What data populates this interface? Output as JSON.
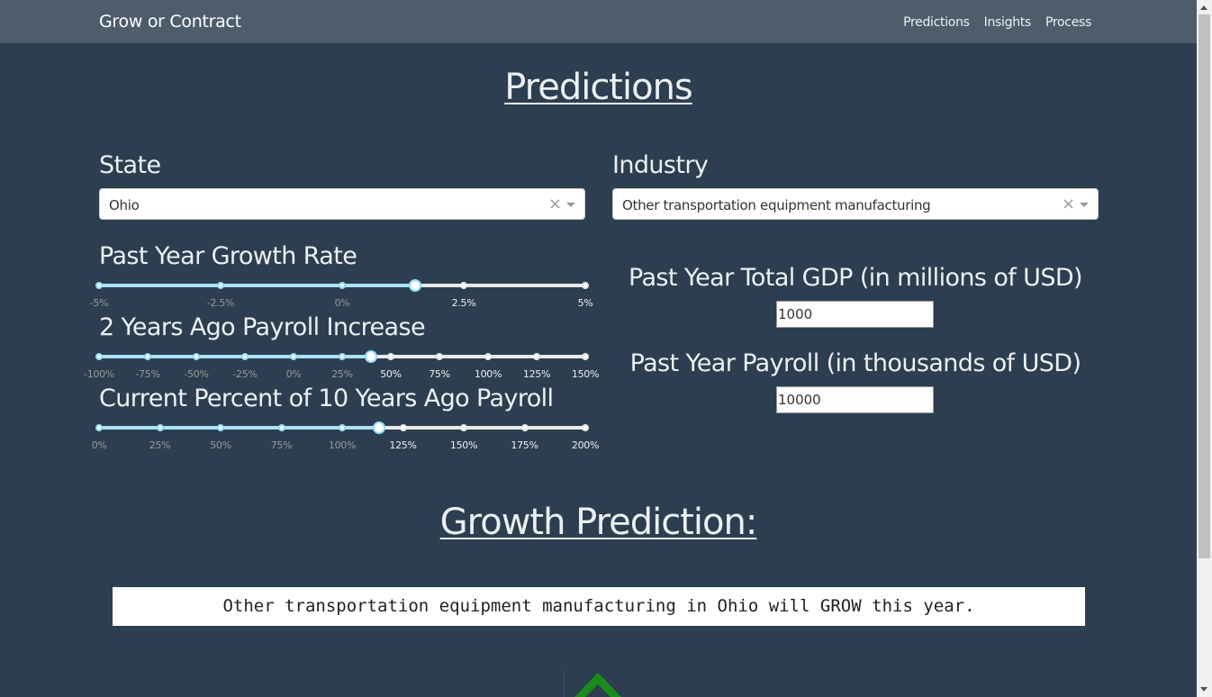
{
  "app": {
    "brand": "Grow or Contract"
  },
  "nav": {
    "links": [
      "Predictions",
      "Insights",
      "Process"
    ]
  },
  "page": {
    "title": "Predictions"
  },
  "state": {
    "label": "State",
    "value": "Ohio",
    "clear": "×"
  },
  "industry": {
    "label": "Industry",
    "value": "Other transportation equipment manufacturing",
    "clear": "×"
  },
  "sliders": [
    {
      "label": "Past Year Growth Rate",
      "min": -5,
      "max": 5,
      "value": 1.5,
      "marks": [
        {
          "v": -5,
          "t": "-5%"
        },
        {
          "v": -2.5,
          "t": "-2.5%"
        },
        {
          "v": 0,
          "t": "0%"
        },
        {
          "v": 2.5,
          "t": "2.5%"
        },
        {
          "v": 5,
          "t": "5%"
        }
      ]
    },
    {
      "label": "2 Years Ago Payroll Increase",
      "min": -100,
      "max": 150,
      "value": 40,
      "marks": [
        {
          "v": -100,
          "t": "-100%"
        },
        {
          "v": -75,
          "t": "-75%"
        },
        {
          "v": -50,
          "t": "-50%"
        },
        {
          "v": -25,
          "t": "-25%"
        },
        {
          "v": 0,
          "t": "0%"
        },
        {
          "v": 25,
          "t": "25%"
        },
        {
          "v": 50,
          "t": "50%"
        },
        {
          "v": 75,
          "t": "75%"
        },
        {
          "v": 100,
          "t": "100%"
        },
        {
          "v": 125,
          "t": "125%"
        },
        {
          "v": 150,
          "t": "150%"
        }
      ]
    },
    {
      "label": "Current Percent of 10 Years Ago Payroll",
      "min": 0,
      "max": 200,
      "value": 115,
      "marks": [
        {
          "v": 0,
          "t": "0%"
        },
        {
          "v": 25,
          "t": "25%"
        },
        {
          "v": 50,
          "t": "50%"
        },
        {
          "v": 75,
          "t": "75%"
        },
        {
          "v": 100,
          "t": "100%"
        },
        {
          "v": 125,
          "t": "125%"
        },
        {
          "v": 150,
          "t": "150%"
        },
        {
          "v": 175,
          "t": "175%"
        },
        {
          "v": 200,
          "t": "200%"
        }
      ]
    }
  ],
  "gdp": {
    "label": "Past Year Total GDP (in millions of USD)",
    "value": "1000"
  },
  "payroll": {
    "label": "Past Year Payroll (in thousands of USD)",
    "value": "10000"
  },
  "prediction": {
    "title": "Growth Prediction:",
    "result": "Other transportation equipment manufacturing in Ohio will GROW this year.",
    "direction": "up-arrow-icon",
    "arrow_color": "#1a8c1a"
  }
}
